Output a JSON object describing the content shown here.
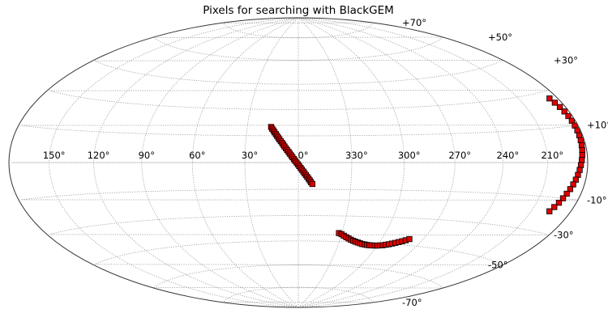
{
  "chart_data": {
    "type": "scatter",
    "projection": "hammer",
    "title": "Pixels for searching with BlackGEM",
    "grid": true,
    "lon_ticks": [
      "150°",
      "120°",
      "90°",
      "60°",
      "30°",
      "0°",
      "330°",
      "300°",
      "270°",
      "240°",
      "210°"
    ],
    "lat_ticks": [
      "+70°",
      "+50°",
      "+30°",
      "+10°",
      "-10°",
      "-30°",
      "-50°",
      "-70°"
    ],
    "marker": {
      "fill": "#e00000",
      "edge": "#000000",
      "shape": "square"
    },
    "series": [
      {
        "points": [
          [
            16.0,
            20.0
          ],
          [
            15.3,
            19.0
          ],
          [
            14.5,
            18.0
          ],
          [
            13.8,
            17.0
          ],
          [
            13.0,
            16.0
          ],
          [
            12.3,
            15.0
          ],
          [
            11.5,
            14.0
          ],
          [
            10.8,
            13.0
          ],
          [
            10.0,
            12.0
          ],
          [
            9.2,
            11.0
          ],
          [
            8.5,
            10.0
          ],
          [
            7.8,
            9.0
          ],
          [
            7.0,
            8.0
          ],
          [
            6.3,
            7.0
          ],
          [
            5.5,
            6.0
          ],
          [
            4.8,
            5.0
          ],
          [
            4.0,
            4.0
          ],
          [
            3.3,
            3.0
          ],
          [
            2.5,
            2.0
          ],
          [
            1.8,
            1.0
          ],
          [
            1.0,
            0.0
          ],
          [
            0.2,
            -1.0
          ],
          [
            359.5,
            -2.0
          ],
          [
            358.7,
            -3.0
          ],
          [
            358.0,
            -4.0
          ],
          [
            357.2,
            -5.0
          ],
          [
            356.5,
            -6.0
          ],
          [
            355.7,
            -7.0
          ],
          [
            355.0,
            -8.0
          ],
          [
            354.2,
            -9.0
          ],
          [
            353.5,
            -10.0
          ],
          [
            352.8,
            -11.0
          ],
          [
            352.0,
            -12.0
          ]
        ]
      },
      {
        "points": [
          [
            332.0,
            -40.0
          ],
          [
            330.0,
            -40.6
          ],
          [
            328.0,
            -41.5
          ],
          [
            326.0,
            -42.3
          ],
          [
            324.0,
            -43.0
          ],
          [
            322.0,
            -43.7
          ],
          [
            320.0,
            -44.3
          ],
          [
            318.0,
            -44.8
          ],
          [
            316.0,
            -45.2
          ],
          [
            314.0,
            -45.6
          ],
          [
            312.0,
            -46.0
          ],
          [
            310.0,
            -46.2
          ],
          [
            308.0,
            -46.4
          ],
          [
            306.0,
            -46.5
          ],
          [
            304.0,
            -46.5
          ],
          [
            302.0,
            -46.5
          ],
          [
            300.0,
            -46.4
          ],
          [
            298.0,
            -46.2
          ],
          [
            296.0,
            -46.0
          ],
          [
            294.0,
            -45.6
          ],
          [
            292.0,
            -45.2
          ],
          [
            290.0,
            -44.7
          ],
          [
            288.0,
            -44.2
          ],
          [
            286.0,
            -43.6
          ],
          [
            284.0,
            -43.0
          ],
          [
            282.0,
            -42.3
          ],
          [
            280.0,
            -41.5
          ]
        ]
      },
      {
        "points": [
          [
            186.5,
            27.0
          ],
          [
            185.5,
            25.0
          ],
          [
            184.5,
            23.0
          ],
          [
            183.7,
            21.0
          ],
          [
            183.2,
            19.0
          ],
          [
            182.8,
            17.0
          ],
          [
            182.6,
            15.0
          ],
          [
            182.5,
            13.0
          ],
          [
            182.6,
            11.0
          ],
          [
            182.8,
            9.0
          ],
          [
            183.1,
            7.0
          ],
          [
            183.5,
            5.0
          ],
          [
            184.0,
            3.0
          ],
          [
            184.6,
            1.0
          ],
          [
            185.3,
            -1.0
          ],
          [
            186.0,
            -3.0
          ],
          [
            186.8,
            -5.0
          ],
          [
            187.7,
            -7.0
          ],
          [
            188.7,
            -9.0
          ],
          [
            189.8,
            -11.0
          ],
          [
            191.0,
            -13.0
          ],
          [
            192.2,
            -15.0
          ],
          [
            193.5,
            -17.0
          ],
          [
            195.0,
            -19.0
          ],
          [
            196.5,
            -21.0
          ]
        ]
      }
    ]
  }
}
